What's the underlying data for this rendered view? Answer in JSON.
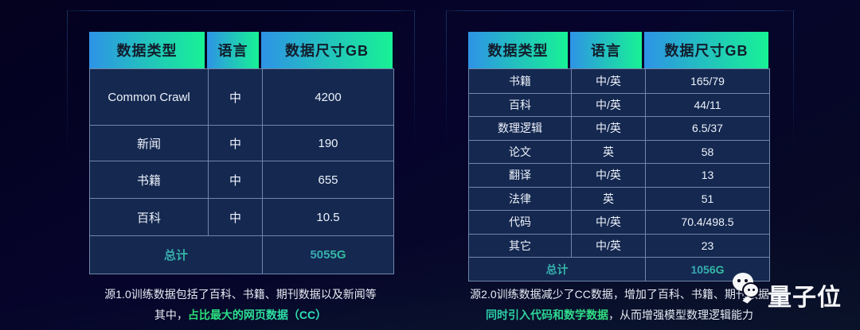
{
  "colors": {
    "background": "#06042c",
    "header_gradient_start": "#2e93e6",
    "header_gradient_end": "#17f295",
    "header_text": "#121d2c",
    "cell_background": "#142850",
    "cell_border": "#96accc",
    "body_text": "#eef2fa",
    "total_gradient_start": "#3f7fd9",
    "total_gradient_end": "#2ee87f",
    "highlight_gradient_start": "#2adf71",
    "highlight_gradient_end": "#30e5c2"
  },
  "tables": [
    {
      "headers": [
        "数据类型",
        "语言",
        "数据尺寸GB"
      ],
      "rows": [
        [
          "Common Crawl",
          "中",
          "4200"
        ],
        [
          "新闻",
          "中",
          "190"
        ],
        [
          "书籍",
          "中",
          "655"
        ],
        [
          "百科",
          "中",
          "10.5"
        ]
      ],
      "total_label": "总计",
      "total_value": "5055G",
      "caption": {
        "line1": "源1.0训练数据包括了百科、书籍、期刊数据以及新闻等",
        "line2_prefix": "其中，",
        "line2_highlight": "占比最大的网页数据（CC）",
        "line2_suffix": ""
      }
    },
    {
      "headers": [
        "数据类型",
        "语言",
        "数据尺寸GB"
      ],
      "rows": [
        [
          "书籍",
          "中/英",
          "165/79"
        ],
        [
          "百科",
          "中/英",
          "44/11"
        ],
        [
          "数理逻辑",
          "中/英",
          "6.5/37"
        ],
        [
          "论文",
          "英",
          "58"
        ],
        [
          "翻译",
          "中/英",
          "13"
        ],
        [
          "法律",
          "英",
          "51"
        ],
        [
          "代码",
          "中/英",
          "70.4/498.5"
        ],
        [
          "其它",
          "中/英",
          "23"
        ]
      ],
      "total_label": "总计",
      "total_value": "1056G",
      "caption": {
        "line1": "源2.0训练数据减少了CC数据，增加了百科、书籍、期刊数据",
        "line2_prefix": "",
        "line2_highlight": "同时引入代码和数学数据",
        "line2_suffix": "，从而增强模型数理逻辑能力"
      }
    }
  ],
  "logo": {
    "text": "量子位"
  },
  "chart_data": [
    {
      "type": "table",
      "title": "源1.0训练数据",
      "columns": [
        "数据类型",
        "语言",
        "数据尺寸GB"
      ],
      "rows": [
        [
          "Common Crawl",
          "中",
          4200
        ],
        [
          "新闻",
          "中",
          190
        ],
        [
          "书籍",
          "中",
          655
        ],
        [
          "百科",
          "中",
          10.5
        ]
      ],
      "total": {
        "label": "总计",
        "value": "5055G"
      }
    },
    {
      "type": "table",
      "title": "源2.0训练数据",
      "columns": [
        "数据类型",
        "语言",
        "数据尺寸GB"
      ],
      "rows": [
        [
          "书籍",
          "中/英",
          "165/79"
        ],
        [
          "百科",
          "中/英",
          "44/11"
        ],
        [
          "数理逻辑",
          "中/英",
          "6.5/37"
        ],
        [
          "论文",
          "英",
          "58"
        ],
        [
          "翻译",
          "中/英",
          "13"
        ],
        [
          "法律",
          "英",
          "51"
        ],
        [
          "代码",
          "中/英",
          "70.4/498.5"
        ],
        [
          "其它",
          "中/英",
          "23"
        ]
      ],
      "total": {
        "label": "总计",
        "value": "1056G"
      }
    }
  ]
}
